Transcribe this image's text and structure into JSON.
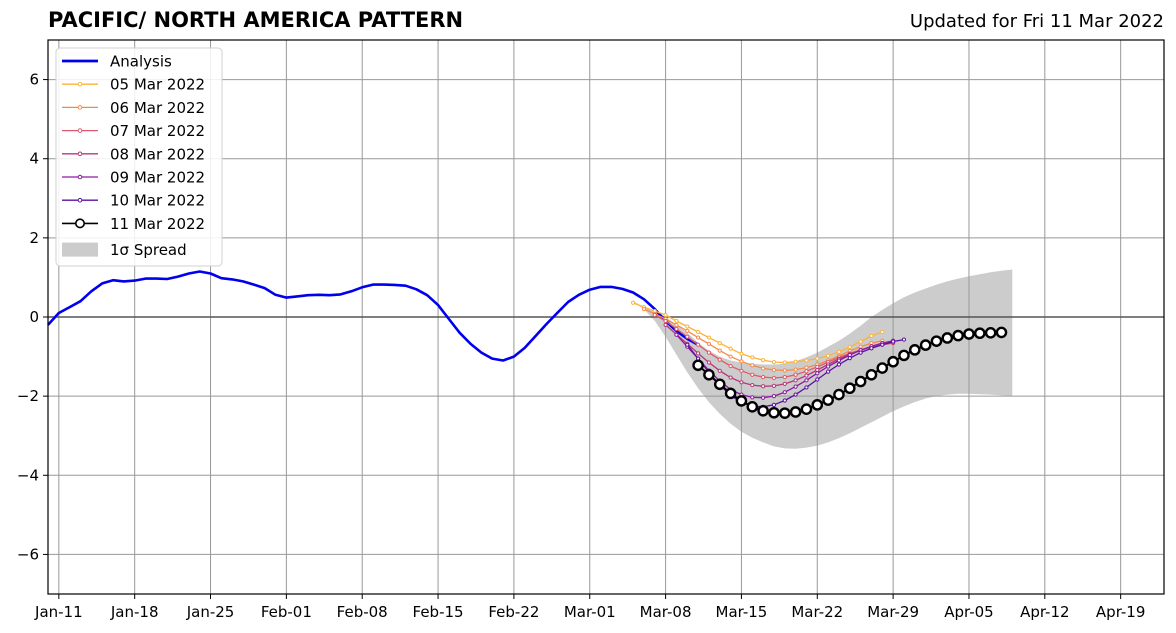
{
  "title": "PACIFIC/ NORTH AMERICA PATTERN",
  "subtitle": "Updated for Fri 11 Mar 2022",
  "chart_data": {
    "type": "line",
    "title": "PACIFIC/ NORTH AMERICA PATTERN",
    "xlabel": "",
    "ylabel": "",
    "ylim": [
      -7,
      7
    ],
    "xlim": [
      "2022-01-10",
      "2022-04-23"
    ],
    "yticks": [
      -6,
      -4,
      -2,
      0,
      2,
      4,
      6
    ],
    "ytick_labels": [
      "−6",
      "−4",
      "−2",
      "0",
      "2",
      "4",
      "6"
    ],
    "xticks": [
      "2022-01-11",
      "2022-01-18",
      "2022-01-25",
      "2022-02-01",
      "2022-02-08",
      "2022-02-15",
      "2022-02-22",
      "2022-03-01",
      "2022-03-08",
      "2022-03-15",
      "2022-03-22",
      "2022-03-29",
      "2022-04-05",
      "2022-04-12",
      "2022-04-19"
    ],
    "xtick_labels": [
      "Jan-11",
      "Jan-18",
      "Jan-25",
      "Feb-01",
      "Feb-08",
      "Feb-15",
      "Feb-22",
      "Mar-01",
      "Mar-08",
      "Mar-15",
      "Mar-22",
      "Mar-29",
      "Apr-05",
      "Apr-12",
      "Apr-19"
    ],
    "grid": true,
    "legend_position": "upper-left",
    "legend": [
      "Analysis",
      "05 Mar 2022",
      "06 Mar 2022",
      "07 Mar 2022",
      "08 Mar 2022",
      "09 Mar 2022",
      "10 Mar 2022",
      "11 Mar 2022",
      "1σ Spread"
    ],
    "analysis": {
      "name": "Analysis",
      "color": "#0000ee",
      "start": "2022-01-10",
      "values": [
        -0.2,
        0.1,
        0.25,
        0.4,
        0.65,
        0.85,
        0.93,
        0.9,
        0.92,
        0.97,
        0.97,
        0.96,
        1.02,
        1.1,
        1.15,
        1.1,
        0.98,
        0.95,
        0.9,
        0.82,
        0.73,
        0.56,
        0.49,
        0.52,
        0.55,
        0.56,
        0.55,
        0.57,
        0.65,
        0.75,
        0.82,
        0.82,
        0.81,
        0.79,
        0.7,
        0.55,
        0.3,
        -0.05,
        -0.4,
        -0.68,
        -0.9,
        -1.05,
        -1.1,
        -1.0,
        -0.78,
        -0.48,
        -0.18,
        0.1,
        0.38,
        0.56,
        0.69,
        0.76,
        0.76,
        0.71,
        0.62,
        0.45,
        0.2,
        -0.1,
        -0.35,
        -0.55,
        -0.7
      ]
    },
    "forecasts": [
      {
        "name": "05 Mar 2022",
        "color": "#fbb33b",
        "start": "2022-03-05",
        "values": [
          0.36,
          0.25,
          0.15,
          0.05,
          -0.1,
          -0.24,
          -0.38,
          -0.52,
          -0.66,
          -0.8,
          -0.93,
          -1.02,
          -1.09,
          -1.14,
          -1.15,
          -1.13,
          -1.1,
          -1.05,
          -0.98,
          -0.88,
          -0.76,
          -0.62,
          -0.48,
          -0.38
        ]
      },
      {
        "name": "06 Mar 2022",
        "color": "#f58a4b",
        "start": "2022-03-06",
        "values": [
          0.2,
          0.08,
          -0.05,
          -0.2,
          -0.35,
          -0.52,
          -0.68,
          -0.85,
          -1.0,
          -1.12,
          -1.22,
          -1.3,
          -1.34,
          -1.35,
          -1.33,
          -1.28,
          -1.2,
          -1.1,
          -0.98,
          -0.86,
          -0.75,
          -0.66,
          -0.6
        ]
      },
      {
        "name": "07 Mar 2022",
        "color": "#de5a6a",
        "start": "2022-03-07",
        "values": [
          0.05,
          -0.1,
          -0.3,
          -0.5,
          -0.7,
          -0.9,
          -1.08,
          -1.24,
          -1.36,
          -1.46,
          -1.52,
          -1.54,
          -1.52,
          -1.46,
          -1.37,
          -1.26,
          -1.14,
          -1.02,
          -0.92,
          -0.83,
          -0.76,
          -0.7,
          -0.66
        ]
      },
      {
        "name": "08 Mar 2022",
        "color": "#b73779",
        "start": "2022-03-08",
        "values": [
          -0.2,
          -0.44,
          -0.68,
          -0.92,
          -1.15,
          -1.36,
          -1.53,
          -1.65,
          -1.72,
          -1.75,
          -1.74,
          -1.69,
          -1.6,
          -1.48,
          -1.34,
          -1.2,
          -1.06,
          -0.94,
          -0.84,
          -0.76,
          -0.7,
          -0.65
        ]
      },
      {
        "name": "09 Mar 2022",
        "color": "#8c1aa0",
        "start": "2022-03-09",
        "values": [
          -0.45,
          -0.75,
          -1.05,
          -1.35,
          -1.62,
          -1.83,
          -1.96,
          -2.03,
          -2.04,
          -2.0,
          -1.9,
          -1.76,
          -1.6,
          -1.42,
          -1.25,
          -1.1,
          -0.96,
          -0.84,
          -0.74,
          -0.66,
          -0.6
        ]
      },
      {
        "name": "10 Mar 2022",
        "color": "#5a0fa0",
        "start": "2022-03-10",
        "values": [
          -0.7,
          -1.05,
          -1.4,
          -1.72,
          -1.98,
          -2.16,
          -2.25,
          -2.27,
          -2.22,
          -2.11,
          -1.96,
          -1.78,
          -1.58,
          -1.38,
          -1.2,
          -1.04,
          -0.9,
          -0.79,
          -0.7,
          -0.62,
          -0.57
        ]
      },
      {
        "name": "11 Mar 2022",
        "color": "#000000",
        "start": "2022-03-11",
        "markers": "hollow-circle",
        "values": [
          -1.22,
          -1.46,
          -1.7,
          -1.93,
          -2.12,
          -2.27,
          -2.37,
          -2.42,
          -2.43,
          -2.4,
          -2.33,
          -2.22,
          -2.1,
          -1.96,
          -1.8,
          -1.63,
          -1.46,
          -1.29,
          -1.13,
          -0.97,
          -0.83,
          -0.71,
          -0.61,
          -0.53,
          -0.47,
          -0.43,
          -0.41,
          -0.4,
          -0.39
        ]
      }
    ],
    "spread": {
      "name": "1σ Spread",
      "color": "#cccccc",
      "start": "2022-03-05",
      "upper": [
        0.4,
        0.25,
        0.15,
        0.0,
        -0.2,
        -0.4,
        -0.65,
        -0.85,
        -1.0,
        -1.1,
        -1.15,
        -1.18,
        -1.2,
        -1.2,
        -1.18,
        -1.12,
        -1.02,
        -0.9,
        -0.75,
        -0.6,
        -0.42,
        -0.22,
        0.0,
        0.18,
        0.35,
        0.5,
        0.62,
        0.72,
        0.82,
        0.9,
        0.97,
        1.03,
        1.08,
        1.13,
        1.17,
        1.2
      ],
      "lower": [
        0.4,
        0.2,
        -0.1,
        -0.5,
        -0.95,
        -1.4,
        -1.8,
        -2.15,
        -2.45,
        -2.7,
        -2.9,
        -3.05,
        -3.17,
        -3.27,
        -3.32,
        -3.33,
        -3.3,
        -3.25,
        -3.17,
        -3.06,
        -2.94,
        -2.8,
        -2.66,
        -2.52,
        -2.38,
        -2.26,
        -2.15,
        -2.06,
        -2.0,
        -1.96,
        -1.94,
        -1.94,
        -1.95,
        -1.96,
        -1.98,
        -2.0
      ]
    }
  }
}
